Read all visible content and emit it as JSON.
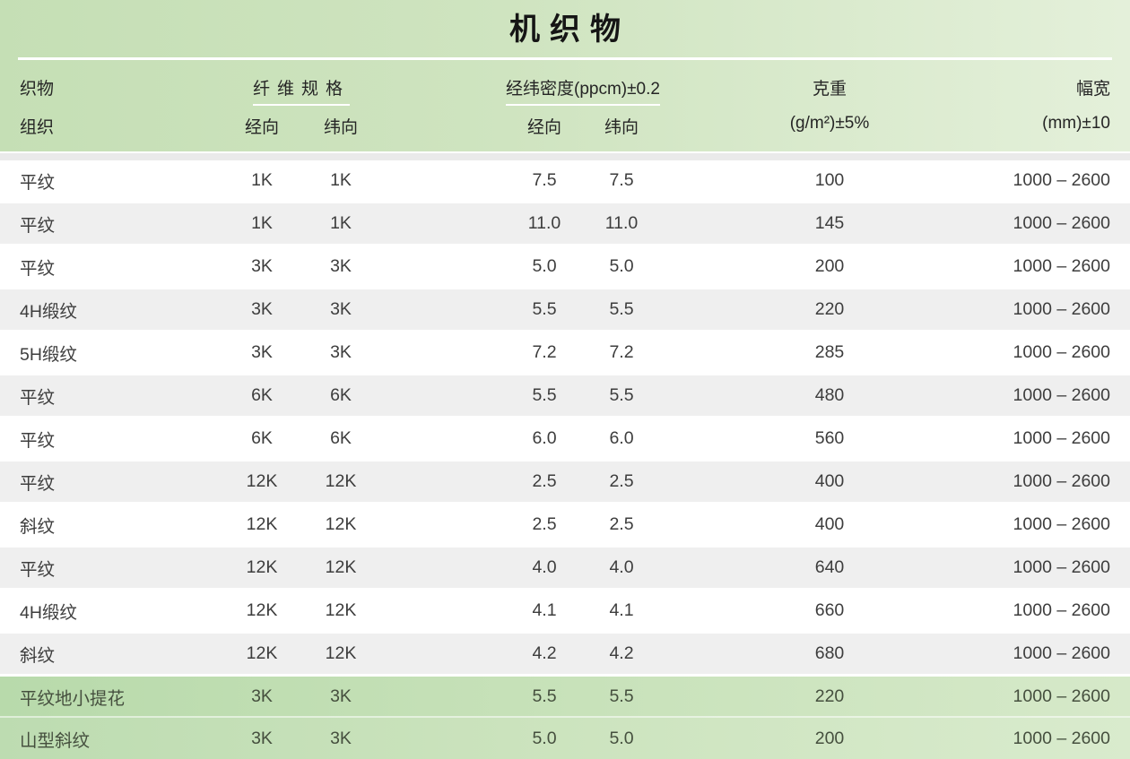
{
  "title": "机织物",
  "header": {
    "fabric_weave_line1": "织物",
    "fabric_weave_line2": "组织",
    "fiber_spec_group": "纤维规格",
    "fiber_warp": "经向",
    "fiber_weft": "纬向",
    "density_group": "经纬密度(ppcm)±0.2",
    "density_warp": "经向",
    "density_weft": "纬向",
    "weight_line1": "克重",
    "weight_line2": "(g/m²)±5%",
    "width_line1": "幅宽",
    "width_line2": "(mm)±10"
  },
  "rows": [
    {
      "weave": "平纹",
      "fiber_warp": "1K",
      "fiber_weft": "1K",
      "density_warp": "7.5",
      "density_weft": "7.5",
      "weight": "100",
      "width": "1000 – 2600",
      "variant": "white"
    },
    {
      "weave": "平纹",
      "fiber_warp": "1K",
      "fiber_weft": "1K",
      "density_warp": "11.0",
      "density_weft": "11.0",
      "weight": "145",
      "width": "1000 – 2600",
      "variant": "gray"
    },
    {
      "weave": "平纹",
      "fiber_warp": "3K",
      "fiber_weft": "3K",
      "density_warp": "5.0",
      "density_weft": "5.0",
      "weight": "200",
      "width": "1000 – 2600",
      "variant": "white"
    },
    {
      "weave": "4H缎纹",
      "fiber_warp": "3K",
      "fiber_weft": "3K",
      "density_warp": "5.5",
      "density_weft": "5.5",
      "weight": "220",
      "width": "1000 – 2600",
      "variant": "gray"
    },
    {
      "weave": "5H缎纹",
      "fiber_warp": "3K",
      "fiber_weft": "3K",
      "density_warp": "7.2",
      "density_weft": "7.2",
      "weight": "285",
      "width": "1000 – 2600",
      "variant": "white"
    },
    {
      "weave": "平纹",
      "fiber_warp": "6K",
      "fiber_weft": "6K",
      "density_warp": "5.5",
      "density_weft": "5.5",
      "weight": "480",
      "width": "1000 – 2600",
      "variant": "gray"
    },
    {
      "weave": "平纹",
      "fiber_warp": "6K",
      "fiber_weft": "6K",
      "density_warp": "6.0",
      "density_weft": "6.0",
      "weight": "560",
      "width": "1000 – 2600",
      "variant": "white"
    },
    {
      "weave": "平纹",
      "fiber_warp": "12K",
      "fiber_weft": "12K",
      "density_warp": "2.5",
      "density_weft": "2.5",
      "weight": "400",
      "width": "1000 – 2600",
      "variant": "gray"
    },
    {
      "weave": "斜纹",
      "fiber_warp": "12K",
      "fiber_weft": "12K",
      "density_warp": "2.5",
      "density_weft": "2.5",
      "weight": "400",
      "width": "1000 – 2600",
      "variant": "white"
    },
    {
      "weave": "平纹",
      "fiber_warp": "12K",
      "fiber_weft": "12K",
      "density_warp": "4.0",
      "density_weft": "4.0",
      "weight": "640",
      "width": "1000 – 2600",
      "variant": "gray"
    },
    {
      "weave": "4H缎纹",
      "fiber_warp": "12K",
      "fiber_weft": "12K",
      "density_warp": "4.1",
      "density_weft": "4.1",
      "weight": "660",
      "width": "1000 – 2600",
      "variant": "white"
    },
    {
      "weave": "斜纹",
      "fiber_warp": "12K",
      "fiber_weft": "12K",
      "density_warp": "4.2",
      "density_weft": "4.2",
      "weight": "680",
      "width": "1000 – 2600",
      "variant": "gray"
    },
    {
      "weave": "平纹地小提花",
      "fiber_warp": "3K",
      "fiber_weft": "3K",
      "density_warp": "5.5",
      "density_weft": "5.5",
      "weight": "220",
      "width": "1000 – 2600",
      "variant": "green1"
    },
    {
      "weave": "山型斜纹",
      "fiber_warp": "3K",
      "fiber_weft": "3K",
      "density_warp": "5.0",
      "density_weft": "5.0",
      "weight": "200",
      "width": "1000 – 2600",
      "variant": "green2"
    }
  ],
  "colors": {
    "header_green_left": "#c5dfb5",
    "header_green_right": "#e4f0da",
    "row_gray": "#efefef",
    "row_white": "#ffffff",
    "row_green_left": "#b8daab",
    "row_green_right": "#d9ebcd",
    "bottom_strip": "#abd09f",
    "divider": "#eaeaea",
    "text": "#3d3d3d",
    "title_text": "#151515"
  }
}
